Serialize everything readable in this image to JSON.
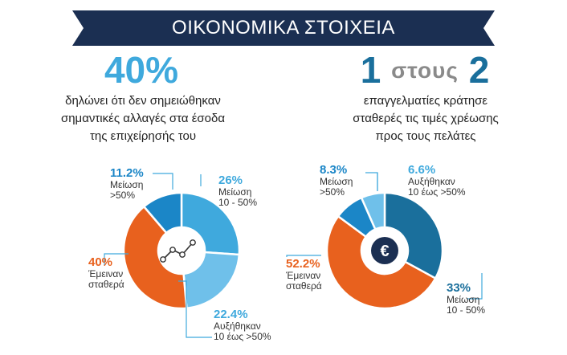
{
  "header": {
    "title": "ΟΙΚΟΝΟΜΙΚΑ ΣΤΟΙΧΕΙΑ"
  },
  "left": {
    "big_value": "40%",
    "desc_line1": "δηλώνει ότι δεν σημειώθηκαν",
    "desc_line2": "σημαντικές αλλαγές στα έσοδα",
    "desc_line3": "της επιχείρησής του"
  },
  "right": {
    "big_num1": "1",
    "big_word": "στους",
    "big_num2": "2",
    "desc_line1": "επαγγελματίες κράτησε",
    "desc_line2": "σταθερές τις τιμές χρέωσης",
    "desc_line3": "προς τους πελάτες"
  },
  "colors": {
    "navy": "#1b2f52",
    "light_blue": "#3fa9dd",
    "pale_blue": "#5cb6e6",
    "dark_blue": "#1a6f9c",
    "orange": "#e8611e",
    "gray_word": "#8a8a8a"
  },
  "chart_data": [
    {
      "type": "pie",
      "title": "",
      "center_icon": "line-chart-icon",
      "slices": [
        {
          "value": 26,
          "pct": "26%",
          "l1": "Μείωση",
          "l2": "10 - 50%",
          "color": "#3fa9dd"
        },
        {
          "value": 22.4,
          "pct": "22.4%",
          "l1": "Αυξήθηκαν",
          "l2": "10 έως >50%",
          "color": "#6fc0ea"
        },
        {
          "value": 40,
          "pct": "40%",
          "l1": "Έμειναν",
          "l2": "σταθερά",
          "color": "#e8611e"
        },
        {
          "value": 11.2,
          "pct": "11.2%",
          "l1": "Μείωση",
          "l2": ">50%",
          "color": "#1b86c7"
        }
      ]
    },
    {
      "type": "pie",
      "title": "",
      "center_icon": "euro-icon",
      "slices": [
        {
          "value": 33,
          "pct": "33%",
          "l1": "Μείωση",
          "l2": "10 - 50%",
          "color": "#1a6f9c"
        },
        {
          "value": 52.2,
          "pct": "52.2%",
          "l1": "Έμειναν",
          "l2": "σταθερά",
          "color": "#e8611e"
        },
        {
          "value": 8.3,
          "pct": "8.3%",
          "l1": "Μείωση",
          "l2": ">50%",
          "color": "#1b86c7"
        },
        {
          "value": 6.6,
          "pct": "6.6%",
          "l1": "Αυξήθηκαν",
          "l2": "10 έως >50%",
          "color": "#6fc0ea"
        }
      ]
    }
  ]
}
